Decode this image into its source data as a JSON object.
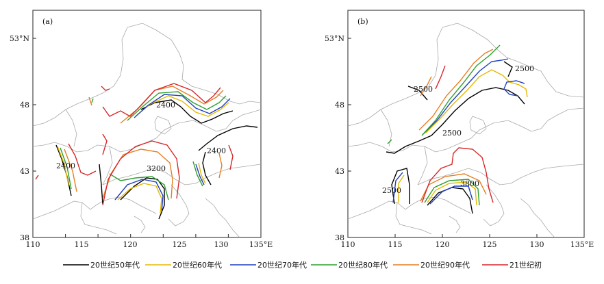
{
  "panels": [
    {
      "label": "(a)",
      "x_ticks": [
        "110",
        "115",
        "120",
        "125",
        "130",
        "135°E"
      ],
      "y_ticks": [
        "53°N",
        "48",
        "43",
        "38"
      ],
      "contour_labels": [
        "2400",
        "2400",
        "2400",
        "3200"
      ]
    },
    {
      "label": "(b)",
      "x_ticks": [
        "110",
        "115",
        "120",
        "125",
        "130",
        "135°E"
      ],
      "y_ticks": [
        "53°N",
        "48",
        "43",
        "38"
      ],
      "contour_labels": [
        "2500",
        "2500",
        "2500",
        "2500",
        "3800"
      ]
    }
  ],
  "legend": [
    {
      "label": "20世纪50年代",
      "color": "#000000"
    },
    {
      "label": "20世纪60年代",
      "color": "#e6b800"
    },
    {
      "label": "20世纪70年代",
      "color": "#1f3fbf"
    },
    {
      "label": "20世纪80年代",
      "color": "#2ca02c"
    },
    {
      "label": "20世纪90年代",
      "color": "#e67e22"
    },
    {
      "label": "21世纪初",
      "color": "#d62728"
    }
  ]
}
